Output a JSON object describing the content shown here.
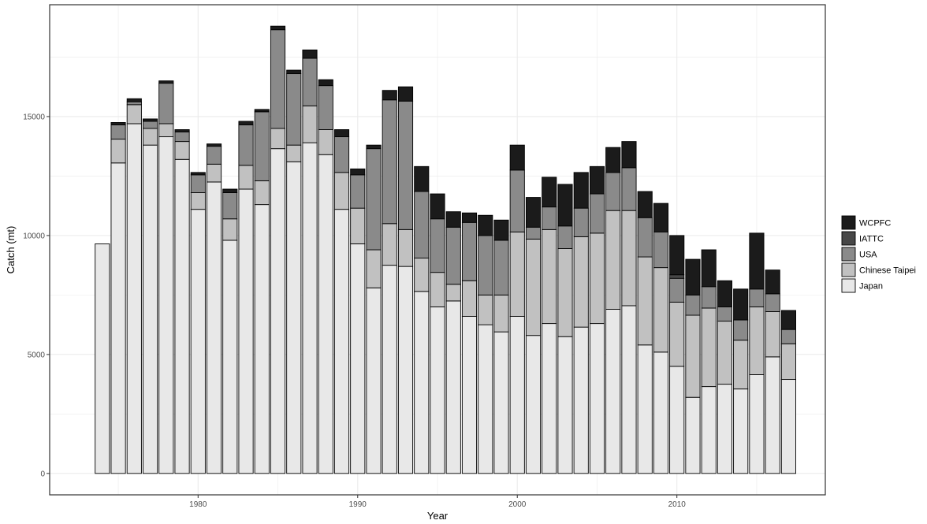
{
  "chart_data": {
    "type": "bar",
    "stacked": true,
    "title": "",
    "xlabel": "Year",
    "ylabel": "Catch (mt)",
    "x": [
      1973,
      1974,
      1975,
      1976,
      1977,
      1978,
      1979,
      1980,
      1981,
      1982,
      1983,
      1984,
      1985,
      1986,
      1987,
      1988,
      1989,
      1990,
      1991,
      1992,
      1993,
      1994,
      1995,
      1996,
      1997,
      1998,
      1999,
      2000,
      2001,
      2002,
      2003,
      2004,
      2005,
      2006,
      2007,
      2008,
      2009,
      2010,
      2011,
      2012,
      2013,
      2014,
      2015,
      2016,
      2017
    ],
    "xlim": [
      1970.7,
      2019.3
    ],
    "xticks": [
      1980,
      1990,
      2000,
      2010
    ],
    "ylim": [
      -900,
      19700
    ],
    "yticks": [
      0,
      5000,
      10000,
      15000
    ],
    "grid": true,
    "legend_position": "right",
    "legend_order": [
      "WCPFC",
      "IATTC",
      "USA",
      "Chinese Taipei",
      "Japan"
    ],
    "series": [
      {
        "name": "Japan",
        "color": "#e8e8e8",
        "values": [
          0,
          9650,
          13050,
          14700,
          13800,
          14150,
          13200,
          11100,
          12250,
          9800,
          11950,
          11300,
          13650,
          13100,
          13900,
          13400,
          11100,
          9650,
          7800,
          8750,
          8700,
          7650,
          7000,
          7250,
          6600,
          6250,
          5950,
          6600,
          5800,
          6300,
          5750,
          6150,
          6300,
          6900,
          7050,
          5400,
          5100,
          4500,
          3200,
          3650,
          3750,
          3550,
          4150,
          4900,
          3950
        ]
      },
      {
        "name": "Chinese Taipei",
        "color": "#c1c1c1",
        "values": [
          0,
          0,
          1000,
          800,
          700,
          550,
          750,
          700,
          750,
          900,
          1000,
          1000,
          850,
          700,
          1550,
          1050,
          1550,
          1500,
          1600,
          1750,
          1550,
          1400,
          1450,
          700,
          1500,
          1250,
          1550,
          3550,
          4050,
          3950,
          3700,
          3800,
          3800,
          4150,
          4000,
          3700,
          3550,
          2700,
          3450,
          3300,
          2650,
          2050,
          2850,
          1900,
          1500
        ]
      },
      {
        "name": "USA",
        "color": "#8a8a8a",
        "values": [
          0,
          0,
          600,
          120,
          300,
          1700,
          400,
          750,
          750,
          1100,
          1700,
          2900,
          4150,
          3000,
          2000,
          1850,
          1500,
          1400,
          4250,
          5200,
          5400,
          2800,
          2250,
          2400,
          2450,
          2500,
          2300,
          2600,
          500,
          950,
          950,
          1200,
          1650,
          1600,
          1800,
          1650,
          1500,
          1000,
          850,
          900,
          600,
          850,
          750,
          750,
          600
        ]
      },
      {
        "name": "IATTC",
        "color": "#474747",
        "values": [
          0,
          0,
          0,
          0,
          0,
          0,
          0,
          0,
          0,
          0,
          0,
          0,
          0,
          0,
          0,
          0,
          0,
          0,
          0,
          0,
          0,
          0,
          0,
          0,
          0,
          0,
          0,
          0,
          0,
          0,
          0,
          0,
          0,
          0,
          0,
          0,
          0,
          150,
          0,
          0,
          0,
          0,
          0,
          0,
          0
        ]
      },
      {
        "name": "WCPFC",
        "color": "#1b1b1b",
        "values": [
          0,
          0,
          100,
          130,
          100,
          100,
          100,
          100,
          100,
          150,
          150,
          100,
          150,
          150,
          350,
          250,
          300,
          250,
          150,
          400,
          600,
          1050,
          1050,
          650,
          400,
          850,
          850,
          1050,
          1250,
          1250,
          1750,
          1500,
          1150,
          1050,
          1100,
          1100,
          1200,
          1650,
          1500,
          1550,
          1100,
          1300,
          2350,
          1000,
          800
        ]
      }
    ]
  }
}
